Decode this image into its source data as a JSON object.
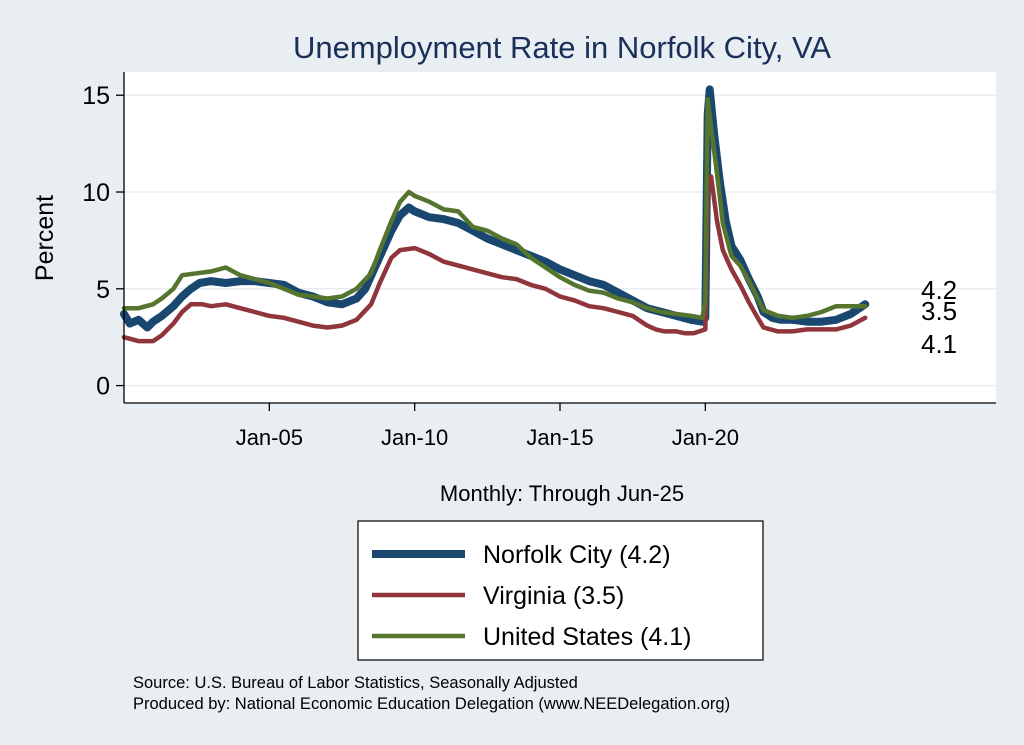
{
  "chart_data": {
    "type": "line",
    "title": "Unemployment Rate in Norfolk City, VA",
    "xlabel": "Monthly: Through Jun-25",
    "ylabel": "Percent",
    "x_tick_labels": [
      "Jan-05",
      "Jan-10",
      "Jan-15",
      "Jan-20"
    ],
    "x_tick_values": [
      2005,
      2010,
      2015,
      2020
    ],
    "y_ticks": [
      0,
      5,
      10,
      15
    ],
    "xlim": [
      2000,
      2030
    ],
    "ylim": [
      -0.9,
      16.2
    ],
    "grid": true,
    "legend_position": "bottom",
    "series": [
      {
        "name": "Norfolk City  (4.2)",
        "color": "#1a476f",
        "end_label": "4.2",
        "points": [
          [
            2000.0,
            3.7
          ],
          [
            2000.2,
            3.2
          ],
          [
            2000.5,
            3.4
          ],
          [
            2000.8,
            3.0
          ],
          [
            2001.0,
            3.3
          ],
          [
            2001.3,
            3.6
          ],
          [
            2001.7,
            4.1
          ],
          [
            2002.0,
            4.6
          ],
          [
            2002.3,
            5.0
          ],
          [
            2002.6,
            5.3
          ],
          [
            2003.0,
            5.4
          ],
          [
            2003.5,
            5.3
          ],
          [
            2004.0,
            5.4
          ],
          [
            2004.5,
            5.4
          ],
          [
            2005.0,
            5.3
          ],
          [
            2005.5,
            5.2
          ],
          [
            2006.0,
            4.8
          ],
          [
            2006.5,
            4.6
          ],
          [
            2007.0,
            4.3
          ],
          [
            2007.5,
            4.2
          ],
          [
            2008.0,
            4.5
          ],
          [
            2008.3,
            5.0
          ],
          [
            2008.6,
            6.0
          ],
          [
            2008.9,
            7.0
          ],
          [
            2009.2,
            8.0
          ],
          [
            2009.5,
            8.8
          ],
          [
            2009.8,
            9.2
          ],
          [
            2010.0,
            9.0
          ],
          [
            2010.5,
            8.7
          ],
          [
            2011.0,
            8.6
          ],
          [
            2011.5,
            8.4
          ],
          [
            2012.0,
            8.0
          ],
          [
            2012.5,
            7.6
          ],
          [
            2013.0,
            7.3
          ],
          [
            2013.5,
            7.0
          ],
          [
            2014.0,
            6.7
          ],
          [
            2014.5,
            6.4
          ],
          [
            2015.0,
            6.0
          ],
          [
            2015.5,
            5.7
          ],
          [
            2016.0,
            5.4
          ],
          [
            2016.5,
            5.2
          ],
          [
            2017.0,
            4.8
          ],
          [
            2017.5,
            4.4
          ],
          [
            2018.0,
            4.0
          ],
          [
            2018.5,
            3.8
          ],
          [
            2019.0,
            3.6
          ],
          [
            2019.5,
            3.4
          ],
          [
            2019.9,
            3.3
          ],
          [
            2020.0,
            3.5
          ],
          [
            2020.08,
            14.0
          ],
          [
            2020.15,
            15.3
          ],
          [
            2020.3,
            13.0
          ],
          [
            2020.5,
            10.5
          ],
          [
            2020.7,
            8.5
          ],
          [
            2020.9,
            7.2
          ],
          [
            2021.2,
            6.5
          ],
          [
            2021.5,
            5.5
          ],
          [
            2021.8,
            4.6
          ],
          [
            2022.0,
            3.8
          ],
          [
            2022.3,
            3.5
          ],
          [
            2022.6,
            3.4
          ],
          [
            2023.0,
            3.4
          ],
          [
            2023.5,
            3.3
          ],
          [
            2024.0,
            3.3
          ],
          [
            2024.5,
            3.4
          ],
          [
            2025.0,
            3.7
          ],
          [
            2025.5,
            4.2
          ]
        ]
      },
      {
        "name": "Virginia (3.5)",
        "color": "#90353b",
        "end_label": "3.5",
        "points": [
          [
            2000.0,
            2.5
          ],
          [
            2000.5,
            2.3
          ],
          [
            2001.0,
            2.3
          ],
          [
            2001.3,
            2.6
          ],
          [
            2001.7,
            3.2
          ],
          [
            2002.0,
            3.8
          ],
          [
            2002.3,
            4.2
          ],
          [
            2002.7,
            4.2
          ],
          [
            2003.0,
            4.1
          ],
          [
            2003.5,
            4.2
          ],
          [
            2004.0,
            4.0
          ],
          [
            2004.5,
            3.8
          ],
          [
            2005.0,
            3.6
          ],
          [
            2005.5,
            3.5
          ],
          [
            2006.0,
            3.3
          ],
          [
            2006.5,
            3.1
          ],
          [
            2007.0,
            3.0
          ],
          [
            2007.5,
            3.1
          ],
          [
            2008.0,
            3.4
          ],
          [
            2008.5,
            4.2
          ],
          [
            2008.8,
            5.3
          ],
          [
            2009.2,
            6.6
          ],
          [
            2009.5,
            7.0
          ],
          [
            2010.0,
            7.1
          ],
          [
            2010.5,
            6.8
          ],
          [
            2011.0,
            6.4
          ],
          [
            2011.5,
            6.2
          ],
          [
            2012.0,
            6.0
          ],
          [
            2012.5,
            5.8
          ],
          [
            2013.0,
            5.6
          ],
          [
            2013.5,
            5.5
          ],
          [
            2014.0,
            5.2
          ],
          [
            2014.5,
            5.0
          ],
          [
            2015.0,
            4.6
          ],
          [
            2015.5,
            4.4
          ],
          [
            2016.0,
            4.1
          ],
          [
            2016.5,
            4.0
          ],
          [
            2017.0,
            3.8
          ],
          [
            2017.5,
            3.6
          ],
          [
            2018.0,
            3.1
          ],
          [
            2018.3,
            2.9
          ],
          [
            2018.6,
            2.8
          ],
          [
            2019.0,
            2.8
          ],
          [
            2019.3,
            2.7
          ],
          [
            2019.6,
            2.7
          ],
          [
            2020.0,
            2.9
          ],
          [
            2020.08,
            10.5
          ],
          [
            2020.2,
            10.8
          ],
          [
            2020.4,
            8.5
          ],
          [
            2020.6,
            7.0
          ],
          [
            2020.9,
            6.0
          ],
          [
            2021.2,
            5.2
          ],
          [
            2021.5,
            4.3
          ],
          [
            2021.8,
            3.5
          ],
          [
            2022.0,
            3.0
          ],
          [
            2022.5,
            2.8
          ],
          [
            2023.0,
            2.8
          ],
          [
            2023.5,
            2.9
          ],
          [
            2024.0,
            2.9
          ],
          [
            2024.5,
            2.9
          ],
          [
            2025.0,
            3.1
          ],
          [
            2025.5,
            3.5
          ]
        ]
      },
      {
        "name": "United States (4.1)",
        "color": "#55752f",
        "end_label": "4.1",
        "points": [
          [
            2000.0,
            4.0
          ],
          [
            2000.5,
            4.0
          ],
          [
            2001.0,
            4.2
          ],
          [
            2001.3,
            4.5
          ],
          [
            2001.7,
            5.0
          ],
          [
            2002.0,
            5.7
          ],
          [
            2002.5,
            5.8
          ],
          [
            2003.0,
            5.9
          ],
          [
            2003.5,
            6.1
          ],
          [
            2004.0,
            5.7
          ],
          [
            2004.5,
            5.5
          ],
          [
            2005.0,
            5.3
          ],
          [
            2005.5,
            5.0
          ],
          [
            2006.0,
            4.7
          ],
          [
            2006.5,
            4.6
          ],
          [
            2007.0,
            4.5
          ],
          [
            2007.5,
            4.6
          ],
          [
            2008.0,
            5.0
          ],
          [
            2008.5,
            5.8
          ],
          [
            2008.8,
            7.0
          ],
          [
            2009.2,
            8.5
          ],
          [
            2009.5,
            9.5
          ],
          [
            2009.8,
            10.0
          ],
          [
            2010.0,
            9.8
          ],
          [
            2010.5,
            9.5
          ],
          [
            2011.0,
            9.1
          ],
          [
            2011.5,
            9.0
          ],
          [
            2012.0,
            8.2
          ],
          [
            2012.5,
            8.0
          ],
          [
            2013.0,
            7.6
          ],
          [
            2013.5,
            7.3
          ],
          [
            2014.0,
            6.6
          ],
          [
            2014.5,
            6.1
          ],
          [
            2015.0,
            5.6
          ],
          [
            2015.5,
            5.2
          ],
          [
            2016.0,
            4.9
          ],
          [
            2016.5,
            4.8
          ],
          [
            2017.0,
            4.5
          ],
          [
            2017.5,
            4.3
          ],
          [
            2018.0,
            4.0
          ],
          [
            2018.5,
            3.8
          ],
          [
            2019.0,
            3.7
          ],
          [
            2019.5,
            3.6
          ],
          [
            2019.9,
            3.5
          ],
          [
            2020.0,
            4.4
          ],
          [
            2020.08,
            14.8
          ],
          [
            2020.2,
            13.3
          ],
          [
            2020.4,
            11.0
          ],
          [
            2020.6,
            8.4
          ],
          [
            2020.9,
            6.7
          ],
          [
            2021.2,
            6.2
          ],
          [
            2021.5,
            5.4
          ],
          [
            2021.8,
            4.5
          ],
          [
            2022.0,
            3.9
          ],
          [
            2022.5,
            3.6
          ],
          [
            2023.0,
            3.5
          ],
          [
            2023.5,
            3.6
          ],
          [
            2024.0,
            3.8
          ],
          [
            2024.5,
            4.1
          ],
          [
            2025.0,
            4.1
          ],
          [
            2025.5,
            4.1
          ]
        ]
      }
    ],
    "source_lines": [
      "Source: U.S. Bureau of Labor Statistics, Seasonally Adjusted",
      "Produced by: National Economic Education Delegation (www.NEEDelegation.org)"
    ]
  }
}
